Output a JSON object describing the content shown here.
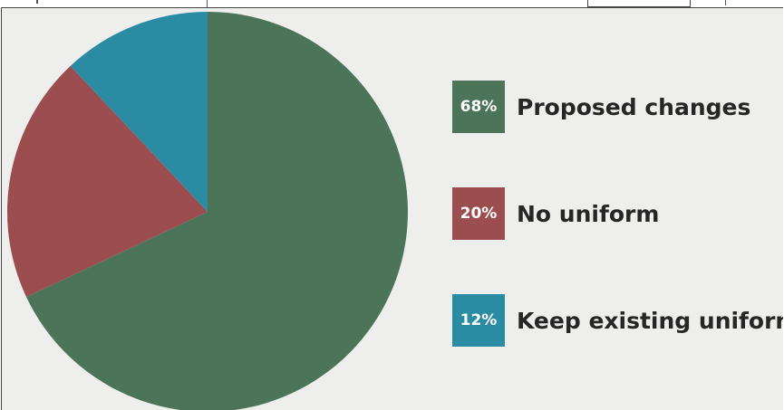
{
  "chart_data": {
    "type": "pie",
    "title": "",
    "slices": [
      {
        "label": "Proposed changes",
        "value": 68,
        "value_label": "68%",
        "color": "#4c7459"
      },
      {
        "label": "No uniform",
        "value": 20,
        "value_label": "20%",
        "color": "#9b4d4f"
      },
      {
        "label": "Keep existing uniform",
        "value": 12,
        "value_label": "12%",
        "color": "#2a8ba3"
      }
    ],
    "legend_position": "right",
    "start_angle": "top",
    "direction": "clockwise"
  },
  "colors": {
    "background": "#eeefed",
    "legend_text": "#262626"
  }
}
